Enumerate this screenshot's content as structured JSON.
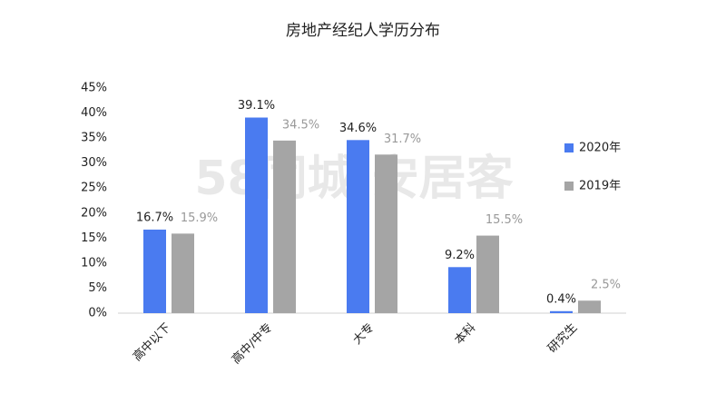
{
  "chart_data": {
    "type": "bar",
    "title": "房地产经纪人学历分布",
    "watermark": "58同城|安居客",
    "categories": [
      "高中以下",
      "高中/中专",
      "大专",
      "本科",
      "研究生"
    ],
    "series": [
      {
        "name": "2020年",
        "color": "#4a7bf0",
        "values": [
          16.7,
          39.1,
          34.6,
          9.2,
          0.4
        ],
        "value_labels": [
          "16.7%",
          "39.1%",
          "34.6%",
          "9.2%",
          "0.4%"
        ]
      },
      {
        "name": "2019年",
        "color": "#a5a5a5",
        "values": [
          15.9,
          34.5,
          31.7,
          15.5,
          2.5
        ],
        "value_labels": [
          "15.9%",
          "34.5%",
          "31.7%",
          "15.5%",
          "2.5%"
        ]
      }
    ],
    "ylim": [
      0,
      45
    ],
    "yticks": [
      {
        "value": 0,
        "label": "0%"
      },
      {
        "value": 5,
        "label": "5%"
      },
      {
        "value": 10,
        "label": "10%"
      },
      {
        "value": 15,
        "label": "15%"
      },
      {
        "value": 20,
        "label": "20%"
      },
      {
        "value": 25,
        "label": "25%"
      },
      {
        "value": 30,
        "label": "30%"
      },
      {
        "value": 35,
        "label": "35%"
      },
      {
        "value": 40,
        "label": "40%"
      },
      {
        "value": 45,
        "label": "45%"
      }
    ],
    "legend": "right"
  }
}
